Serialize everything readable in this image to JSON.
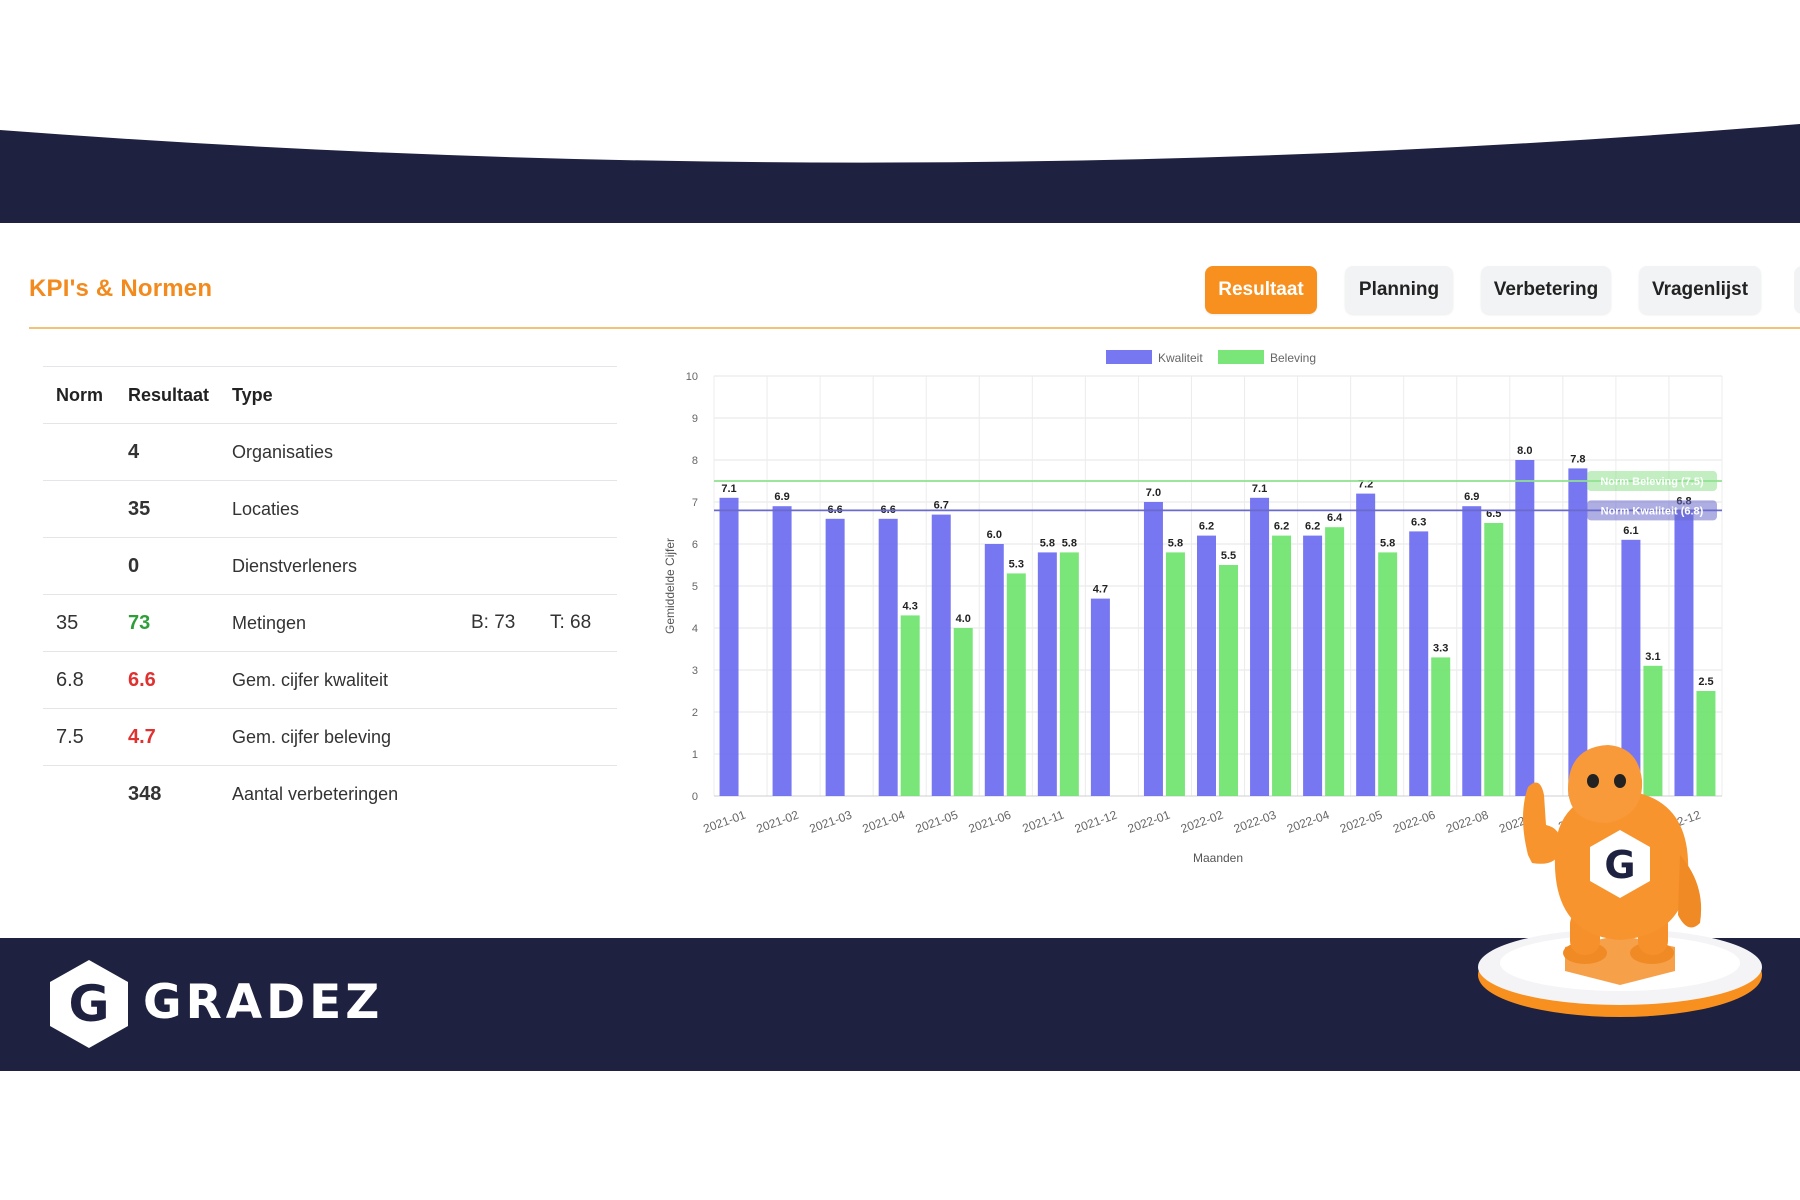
{
  "header": {
    "title": "KPI's & Normen",
    "tabs": [
      {
        "label": "Resultaat",
        "active": true
      },
      {
        "label": "Planning",
        "active": false
      },
      {
        "label": "Verbetering",
        "active": false
      },
      {
        "label": "Vragenlijst",
        "active": false
      }
    ]
  },
  "kpi_table": {
    "headers": {
      "norm": "Norm",
      "result": "Resultaat",
      "type": "Type"
    },
    "rows": [
      {
        "norm": "",
        "result": "4",
        "type": "Organisaties",
        "b": "",
        "t": "",
        "result_color": "#333333"
      },
      {
        "norm": "",
        "result": "35",
        "type": "Locaties",
        "b": "",
        "t": "",
        "result_color": "#333333"
      },
      {
        "norm": "",
        "result": "0",
        "type": "Dienstverleners",
        "b": "",
        "t": "",
        "result_color": "#333333"
      },
      {
        "norm": "35",
        "result": "73",
        "type": "Metingen",
        "b": "B: 73",
        "t": "T: 68",
        "result_color": "#2e9e3a"
      },
      {
        "norm": "6.8",
        "result": "6.6",
        "type": "Gem. cijfer kwaliteit",
        "b": "",
        "t": "",
        "result_color": "#e03131"
      },
      {
        "norm": "7.5",
        "result": "4.7",
        "type": "Gem. cijfer beleving",
        "b": "",
        "t": "",
        "result_color": "#e03131"
      },
      {
        "norm": "",
        "result": "348",
        "type": "Aantal verbeteringen",
        "b": "",
        "t": "",
        "result_color": "#333333"
      }
    ]
  },
  "chart_data": {
    "type": "bar",
    "title": "",
    "xlabel": "Maanden",
    "ylabel": "Gemiddelde Cijfer",
    "ylim": [
      0,
      10
    ],
    "yticks": [
      0,
      1,
      2,
      3,
      4,
      5,
      6,
      7,
      8,
      9,
      10
    ],
    "grid": true,
    "legend_position": "top-center",
    "categories": [
      "2021-01",
      "2021-02",
      "2021-03",
      "2021-04",
      "2021-05",
      "2021-06",
      "2021-11",
      "2021-12",
      "2022-01",
      "2022-02",
      "2022-03",
      "2022-04",
      "2022-05",
      "2022-06",
      "2022-08",
      "2022-09",
      "2022-10",
      "2022-11",
      "2022-12"
    ],
    "tick_labels": [
      "2021-01",
      "2021-02",
      "2021-03",
      "2021-04",
      "2021-05",
      "2021-06",
      "2021-11",
      "2021-12",
      "2022-01",
      "2022-02",
      "2022-03",
      "2022-04",
      "2022-05",
      "2022-06",
      "2022-08",
      "2022-09",
      "2022-1",
      "",
      "2022-12"
    ],
    "series": [
      {
        "name": "Kwaliteit",
        "color": "#6b6bf0",
        "values": [
          7.1,
          6.9,
          6.6,
          6.6,
          6.7,
          6.0,
          5.8,
          4.7,
          7.0,
          6.2,
          7.1,
          6.2,
          7.2,
          6.3,
          6.9,
          8.0,
          7.8,
          6.1,
          6.8
        ]
      },
      {
        "name": "Beleving",
        "color": "#6fe46f",
        "values": [
          null,
          null,
          null,
          4.3,
          4.0,
          5.3,
          5.8,
          null,
          5.8,
          5.5,
          6.2,
          6.4,
          5.8,
          3.3,
          6.5,
          null,
          null,
          3.1,
          2.5
        ]
      }
    ],
    "norm_lines": [
      {
        "label": "Norm Beleving (7.5)",
        "value": 7.5,
        "color": "#8fe08f"
      },
      {
        "label": "Norm Kwaliteit (6.8)",
        "value": 6.8,
        "color": "#6b6bcc"
      }
    ]
  },
  "footer": {
    "logo_letter": "G",
    "brand": "GRADEZ"
  },
  "colors": {
    "navy": "#1e2140",
    "orange": "#f7901e",
    "kwaliteit": "#6b6bf0",
    "beleving": "#6fe46f"
  }
}
